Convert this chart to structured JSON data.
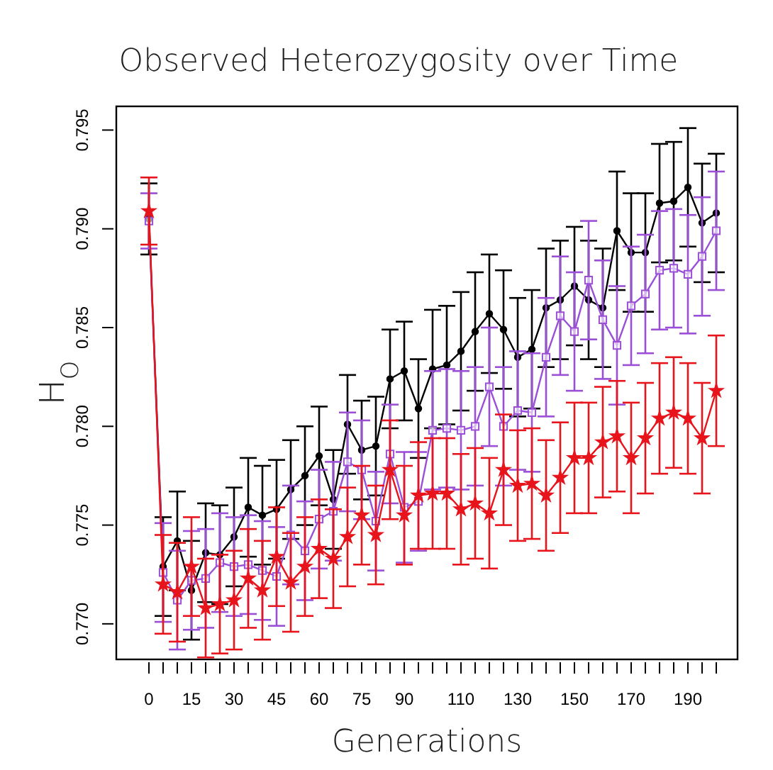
{
  "chart_data": {
    "type": "line",
    "title": "Observed Heterozygosity over Time",
    "xlabel": "Generations",
    "ylabel": "H$_{O}$",
    "x": [
      0,
      5,
      10,
      15,
      20,
      25,
      30,
      35,
      40,
      45,
      50,
      55,
      60,
      65,
      70,
      75,
      80,
      85,
      90,
      95,
      100,
      105,
      110,
      115,
      120,
      125,
      130,
      135,
      140,
      145,
      150,
      155,
      160,
      165,
      170,
      175,
      180,
      185,
      190,
      195,
      200
    ],
    "xlim": [
      -11.5,
      207.5
    ],
    "xticks": [
      {
        "value": 0,
        "label": "0"
      },
      {
        "value": 5,
        "label": null
      },
      {
        "value": 10,
        "label": null
      },
      {
        "value": 15,
        "label": "15"
      },
      {
        "value": 20,
        "label": null
      },
      {
        "value": 25,
        "label": null
      },
      {
        "value": 30,
        "label": "30"
      },
      {
        "value": 35,
        "label": null
      },
      {
        "value": 40,
        "label": null
      },
      {
        "value": 45,
        "label": "45"
      },
      {
        "value": 50,
        "label": null
      },
      {
        "value": 55,
        "label": null
      },
      {
        "value": 60,
        "label": "60"
      },
      {
        "value": 65,
        "label": null
      },
      {
        "value": 70,
        "label": null
      },
      {
        "value": 75,
        "label": "75"
      },
      {
        "value": 80,
        "label": null
      },
      {
        "value": 85,
        "label": null
      },
      {
        "value": 90,
        "label": "90"
      },
      {
        "value": 95,
        "label": null
      },
      {
        "value": 100,
        "label": null
      },
      {
        "value": 105,
        "label": null
      },
      {
        "value": 110,
        "label": "110"
      },
      {
        "value": 115,
        "label": null
      },
      {
        "value": 120,
        "label": null
      },
      {
        "value": 125,
        "label": null
      },
      {
        "value": 130,
        "label": "130"
      },
      {
        "value": 135,
        "label": null
      },
      {
        "value": 140,
        "label": null
      },
      {
        "value": 145,
        "label": null
      },
      {
        "value": 150,
        "label": "150"
      },
      {
        "value": 155,
        "label": null
      },
      {
        "value": 160,
        "label": null
      },
      {
        "value": 165,
        "label": null
      },
      {
        "value": 170,
        "label": "170"
      },
      {
        "value": 175,
        "label": null
      },
      {
        "value": 180,
        "label": null
      },
      {
        "value": 185,
        "label": null
      },
      {
        "value": 190,
        "label": "190"
      },
      {
        "value": 195,
        "label": null
      },
      {
        "value": 200,
        "label": null
      }
    ],
    "ylim": [
      0.7682,
      0.7962
    ],
    "yticks": [
      {
        "value": 0.77,
        "label": "0.770"
      },
      {
        "value": 0.775,
        "label": "0.775"
      },
      {
        "value": 0.78,
        "label": "0.780"
      },
      {
        "value": 0.785,
        "label": "0.785"
      },
      {
        "value": 0.79,
        "label": "0.790"
      },
      {
        "value": 0.795,
        "label": "0.795"
      }
    ],
    "grid": false,
    "line_style": "solid",
    "series": [
      {
        "color": "#000000",
        "marker": "circle",
        "values": [
          0.7905,
          0.7729,
          0.7742,
          0.7717,
          0.7736,
          0.7735,
          0.7744,
          0.7759,
          0.7755,
          0.7758,
          0.7768,
          0.7775,
          0.7785,
          0.7763,
          0.7801,
          0.7788,
          0.779,
          0.7824,
          0.7828,
          0.7809,
          0.7829,
          0.7831,
          0.7838,
          0.7848,
          0.7857,
          0.7849,
          0.7835,
          0.7839,
          0.786,
          0.7864,
          0.7871,
          0.7864,
          0.786,
          0.7899,
          0.7888,
          0.7888,
          0.7913,
          0.7914,
          0.7921,
          0.7903,
          0.7908
        ],
        "errors": [
          0.0018,
          0.0025,
          0.0025,
          0.0025,
          0.0025,
          0.0025,
          0.0025,
          0.0025,
          0.0025,
          0.0025,
          0.0025,
          0.0025,
          0.0025,
          0.0025,
          0.0025,
          0.0025,
          0.0025,
          0.0025,
          0.0025,
          0.0025,
          0.003,
          0.003,
          0.003,
          0.003,
          0.003,
          0.003,
          0.003,
          0.003,
          0.003,
          0.003,
          0.003,
          0.003,
          0.003,
          0.003,
          0.003,
          0.003,
          0.003,
          0.003,
          0.003,
          0.003,
          0.003
        ]
      },
      {
        "color": "#9b4fd6",
        "marker": "square",
        "values": [
          0.7904,
          0.7726,
          0.7712,
          0.7722,
          0.7723,
          0.7731,
          0.7729,
          0.773,
          0.7727,
          0.7724,
          0.7745,
          0.7737,
          0.7753,
          0.7757,
          0.7782,
          0.7778,
          0.7752,
          0.7786,
          0.7759,
          0.7762,
          0.7798,
          0.7799,
          0.7798,
          0.78,
          0.782,
          0.78,
          0.7808,
          0.7807,
          0.7835,
          0.7856,
          0.7848,
          0.7874,
          0.7854,
          0.7841,
          0.7861,
          0.7867,
          0.7879,
          0.788,
          0.7877,
          0.7886,
          0.7899
        ],
        "errors": [
          0.0014,
          0.0025,
          0.0025,
          0.0025,
          0.0025,
          0.0025,
          0.0025,
          0.0025,
          0.0025,
          0.0025,
          0.0025,
          0.0025,
          0.0025,
          0.0025,
          0.0025,
          0.0025,
          0.0025,
          0.0025,
          0.0028,
          0.0025,
          0.003,
          0.003,
          0.003,
          0.003,
          0.003,
          0.003,
          0.003,
          0.003,
          0.003,
          0.003,
          0.003,
          0.003,
          0.003,
          0.003,
          0.003,
          0.003,
          0.003,
          0.003,
          0.003,
          0.003,
          0.003
        ]
      },
      {
        "color": "#e8141c",
        "marker": "star",
        "values": [
          0.7909,
          0.772,
          0.7716,
          0.7729,
          0.7708,
          0.771,
          0.7712,
          0.7723,
          0.7717,
          0.7734,
          0.7721,
          0.7729,
          0.7738,
          0.7733,
          0.7744,
          0.7755,
          0.7745,
          0.7778,
          0.7755,
          0.7765,
          0.7766,
          0.7766,
          0.7758,
          0.7761,
          0.7756,
          0.7778,
          0.777,
          0.7771,
          0.7765,
          0.7774,
          0.7784,
          0.7784,
          0.7792,
          0.7795,
          0.7784,
          0.7794,
          0.7804,
          0.7807,
          0.7804,
          0.7794,
          0.7818
        ],
        "errors": [
          0.0017,
          0.0025,
          0.0025,
          0.0025,
          0.0025,
          0.0025,
          0.0025,
          0.0025,
          0.0025,
          0.0025,
          0.0025,
          0.0025,
          0.0025,
          0.0025,
          0.0025,
          0.0025,
          0.0025,
          0.0025,
          0.0025,
          0.0027,
          0.0028,
          0.0028,
          0.0028,
          0.0028,
          0.0028,
          0.0028,
          0.0028,
          0.0028,
          0.0028,
          0.0028,
          0.0028,
          0.0028,
          0.0028,
          0.0028,
          0.0028,
          0.0028,
          0.0028,
          0.0028,
          0.0028,
          0.0028,
          0.0028
        ]
      }
    ]
  }
}
